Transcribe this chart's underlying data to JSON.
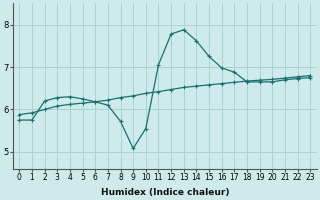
{
  "title": "",
  "xlabel": "Humidex (Indice chaleur)",
  "bg_color": "#ceeaea",
  "line_color": "#1a7070",
  "grid_color": "#a8d4d4",
  "x_ticks": [
    0,
    1,
    2,
    3,
    4,
    5,
    6,
    7,
    8,
    9,
    10,
    11,
    12,
    13,
    14,
    15,
    16,
    17,
    18,
    19,
    20,
    21,
    22,
    23
  ],
  "y_ticks": [
    5,
    6,
    7,
    8
  ],
  "ylim": [
    4.6,
    8.5
  ],
  "xlim": [
    -0.5,
    23.5
  ],
  "curve1_x": [
    0,
    1,
    2,
    3,
    4,
    5,
    6,
    7,
    8,
    9,
    10,
    11,
    12,
    13,
    14,
    15,
    16,
    17,
    18,
    19,
    20,
    21,
    22,
    23
  ],
  "curve1_y": [
    5.75,
    5.75,
    6.2,
    6.28,
    6.3,
    6.25,
    6.18,
    6.1,
    5.72,
    5.08,
    5.55,
    7.05,
    7.78,
    7.88,
    7.62,
    7.25,
    6.98,
    6.88,
    6.65,
    6.65,
    6.65,
    6.7,
    6.73,
    6.75
  ],
  "curve2_x": [
    0,
    1,
    2,
    3,
    4,
    5,
    6,
    7,
    8,
    9,
    10,
    11,
    12,
    13,
    14,
    15,
    16,
    17,
    18,
    19,
    20,
    21,
    22,
    23
  ],
  "curve2_y": [
    5.88,
    5.92,
    6.0,
    6.08,
    6.12,
    6.15,
    6.18,
    6.22,
    6.28,
    6.32,
    6.38,
    6.42,
    6.47,
    6.52,
    6.55,
    6.58,
    6.61,
    6.64,
    6.67,
    6.69,
    6.71,
    6.74,
    6.77,
    6.8
  ],
  "xlabel_fontsize": 6.5,
  "tick_fontsize": 5.5
}
